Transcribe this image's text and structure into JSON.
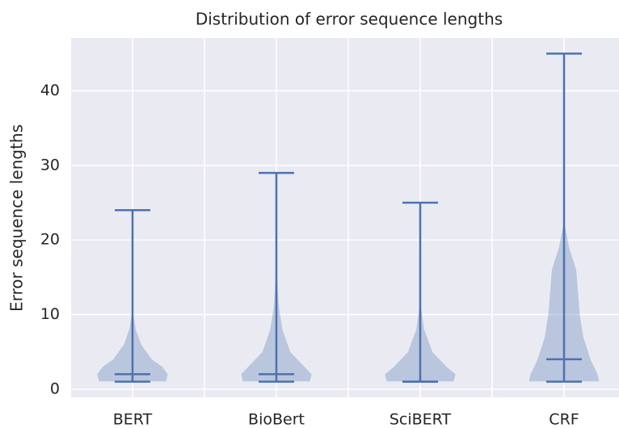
{
  "chart_data": {
    "type": "violin",
    "title": "Distribution of error sequence lengths",
    "y_label": "Error sequence lengths",
    "categories": [
      "BERT",
      "BioBert",
      "SciBERT",
      "CRF"
    ],
    "min": [
      1,
      1,
      1,
      1
    ],
    "max": [
      24,
      29,
      25,
      45
    ],
    "median": [
      2,
      2,
      1,
      4
    ],
    "density": [
      {
        "y": [
          1,
          2,
          3,
          4,
          6,
          8,
          10,
          14,
          24
        ],
        "width": [
          0.95,
          1,
          0.85,
          0.55,
          0.25,
          0.1,
          0.03,
          0.01,
          0
        ]
      },
      {
        "y": [
          1,
          2,
          3,
          5,
          8,
          11,
          15,
          20,
          29
        ],
        "width": [
          0.95,
          1,
          0.8,
          0.4,
          0.18,
          0.08,
          0.03,
          0.01,
          0
        ]
      },
      {
        "y": [
          1,
          2,
          3,
          5,
          8,
          11,
          15,
          25
        ],
        "width": [
          0.95,
          1,
          0.75,
          0.35,
          0.12,
          0.03,
          0.01,
          0
        ]
      },
      {
        "y": [
          1,
          2,
          4,
          7,
          10,
          13,
          16,
          19,
          22,
          30,
          45
        ],
        "width": [
          1,
          0.95,
          0.75,
          0.55,
          0.45,
          0.4,
          0.35,
          0.15,
          0.03,
          0.01,
          0
        ]
      }
    ],
    "color": "#4c72b0",
    "ylim": [
      -1.1,
      47.1
    ],
    "yticks": [
      0,
      10,
      20,
      30,
      40
    ],
    "grid": true
  }
}
